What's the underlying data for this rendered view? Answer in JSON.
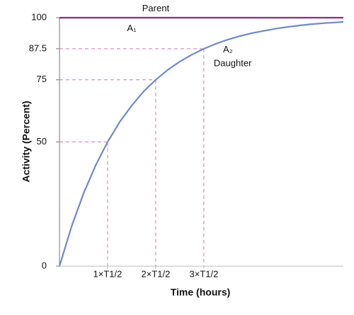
{
  "chart_data": {
    "type": "line",
    "xlabel": "Time (hours)",
    "ylabel": "Activity (Percent)",
    "xlim": [
      0,
      5.9
    ],
    "ylim": [
      0,
      100
    ],
    "xticks": [
      {
        "value": 1,
        "label": "1×T1/2"
      },
      {
        "value": 2,
        "label": "2×T1/2"
      },
      {
        "value": 3,
        "label": "3×T1/2"
      }
    ],
    "yticks": [
      0,
      50,
      75,
      87.5,
      100
    ],
    "series": [
      {
        "name": "Parent",
        "color": "#8e2b86",
        "x": [
          0,
          5.9
        ],
        "values": [
          100,
          100
        ]
      },
      {
        "name": "Daughter",
        "color": "#6f8ac6",
        "x": [
          0,
          0.25,
          0.5,
          0.75,
          1,
          1.25,
          1.5,
          1.75,
          2,
          2.25,
          2.5,
          2.75,
          3,
          3.25,
          3.5,
          3.75,
          4,
          4.25,
          4.5,
          4.75,
          5,
          5.25,
          5.5,
          5.75,
          5.9
        ],
        "values": [
          0,
          15.9,
          29.3,
          40.5,
          50,
          58.0,
          64.6,
          70.3,
          75,
          79.0,
          82.3,
          85.1,
          87.5,
          89.5,
          91.2,
          92.6,
          93.8,
          94.7,
          95.6,
          96.3,
          96.9,
          97.4,
          97.8,
          98.1,
          98.3
        ]
      }
    ],
    "reference_points": [
      {
        "x": 1,
        "y": 50
      },
      {
        "x": 2,
        "y": 75
      },
      {
        "x": 3,
        "y": 87.5
      }
    ],
    "reference_color": "#d07ab0",
    "annotations": [
      {
        "text": "Parent",
        "x": 2.0,
        "y": 103.5
      },
      {
        "text": "A₁",
        "x": 1.5,
        "y": 95.5
      },
      {
        "text": "A₂",
        "x": 3.5,
        "y": 87
      },
      {
        "text": "Daughter",
        "x": 3.6,
        "y": 81.5
      }
    ]
  }
}
